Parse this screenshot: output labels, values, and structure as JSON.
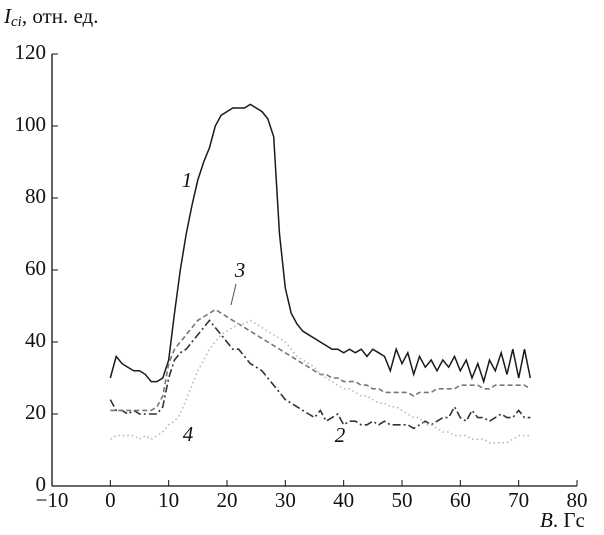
{
  "chart_data": {
    "type": "line",
    "y_label": {
      "symbol": "I",
      "subscript": "ci",
      "unit": ", отн. ед."
    },
    "x_label": {
      "symbol": "B",
      "unit": ". Гс"
    },
    "x": [
      0,
      1,
      2,
      3,
      4,
      5,
      6,
      7,
      8,
      9,
      10,
      11,
      12,
      13,
      14,
      15,
      16,
      17,
      18,
      19,
      20,
      21,
      22,
      23,
      24,
      25,
      26,
      27,
      28,
      29,
      30,
      31,
      32,
      33,
      34,
      35,
      36,
      37,
      38,
      39,
      40,
      41,
      42,
      43,
      44,
      45,
      46,
      47,
      48,
      49,
      50,
      51,
      52,
      53,
      54,
      55,
      56,
      57,
      58,
      59,
      60,
      61,
      62,
      63,
      64,
      65,
      66,
      67,
      68,
      69,
      70,
      71,
      72
    ],
    "xlim": [
      -10,
      80
    ],
    "xticks": [
      {
        "value": -10,
        "label": "−10"
      },
      0,
      10,
      20,
      30,
      40,
      50,
      60,
      70,
      80
    ],
    "ylim": [
      0,
      120
    ],
    "yticks": [
      0,
      20,
      40,
      60,
      80,
      100,
      120
    ],
    "series": [
      {
        "name": "1",
        "color": "#1a1a1a",
        "dash": "none",
        "values": [
          30,
          36,
          34,
          33,
          32,
          32,
          31,
          29,
          29,
          30,
          35,
          48,
          60,
          70,
          78,
          85,
          90,
          94,
          100,
          103,
          104,
          105,
          105,
          105,
          106,
          105,
          104,
          102,
          97,
          70,
          55,
          48,
          45,
          43,
          42,
          41,
          40,
          39,
          38,
          38,
          37,
          38,
          37,
          38,
          36,
          38,
          37,
          36,
          32,
          38,
          34,
          37,
          31,
          36,
          33,
          35,
          32,
          35,
          33,
          36,
          32,
          35,
          30,
          34,
          29,
          35,
          32,
          37,
          31,
          38,
          30,
          38,
          30
        ]
      },
      {
        "name": "2",
        "color": "#333333",
        "dash": "dashdot",
        "values": [
          24,
          21,
          21,
          20,
          21,
          20,
          20,
          20,
          20,
          22,
          30,
          35,
          37,
          38,
          40,
          42,
          44,
          46,
          44,
          42,
          40,
          38,
          38,
          36,
          34,
          33,
          32,
          30,
          28,
          26,
          24,
          23,
          22,
          21,
          20,
          19,
          21,
          18,
          19,
          20,
          17,
          18,
          18,
          17,
          17,
          18,
          17,
          18,
          17,
          17,
          17,
          17,
          16,
          17,
          18,
          17,
          18,
          19,
          19,
          22,
          19,
          18,
          21,
          19,
          19,
          18,
          19,
          20,
          19,
          19,
          21,
          19,
          19
        ]
      },
      {
        "name": "3",
        "color": "#777777",
        "dash": "dashed",
        "values": [
          21,
          21,
          21,
          21,
          21,
          21,
          21,
          21,
          22,
          25,
          34,
          38,
          40,
          42,
          44,
          46,
          47,
          48,
          49,
          48,
          47,
          46,
          45,
          44,
          43,
          42,
          41,
          40,
          39,
          38,
          37,
          36,
          35,
          34,
          33,
          32,
          31,
          31,
          30,
          30,
          29,
          29,
          29,
          28,
          28,
          27,
          27,
          26,
          26,
          26,
          26,
          26,
          25,
          26,
          26,
          26,
          27,
          27,
          27,
          27,
          28,
          28,
          28,
          28,
          27,
          27,
          28,
          28,
          28,
          28,
          28,
          28,
          27
        ]
      },
      {
        "name": "4",
        "color": "#b8b8b8",
        "dash": "dotted",
        "values": [
          13,
          14,
          14,
          14,
          14,
          13,
          14,
          13,
          14,
          15,
          17,
          18,
          20,
          24,
          28,
          32,
          35,
          38,
          40,
          42,
          43,
          44,
          45,
          45,
          46,
          45,
          44,
          43,
          42,
          41,
          40,
          38,
          36,
          35,
          34,
          33,
          31,
          30,
          29,
          28,
          27,
          27,
          26,
          25,
          25,
          24,
          23,
          23,
          22,
          22,
          21,
          20,
          19,
          19,
          17,
          17,
          16,
          15,
          15,
          14,
          14,
          14,
          13,
          13,
          13,
          12,
          12,
          12,
          12,
          13,
          14,
          14,
          14
        ]
      }
    ]
  }
}
